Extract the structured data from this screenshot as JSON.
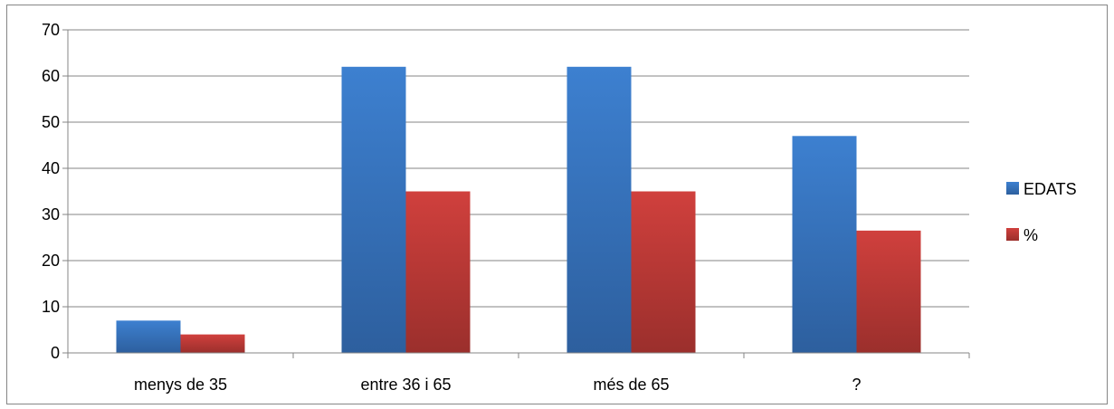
{
  "chart_data": {
    "type": "bar",
    "categories": [
      "menys de 35",
      "entre 36 i 65",
      "més de 65",
      "?"
    ],
    "series": [
      {
        "name": "EDATS",
        "values": [
          7,
          62,
          62,
          47
        ],
        "color": "#4a7ebb"
      },
      {
        "name": "%",
        "values": [
          4,
          35,
          35,
          26.5
        ],
        "color": "#be4b48"
      }
    ],
    "ylim": [
      0,
      70
    ],
    "yticks": [
      0,
      10,
      20,
      30,
      40,
      50,
      60,
      70
    ],
    "grid": true,
    "legend_position": "right"
  }
}
